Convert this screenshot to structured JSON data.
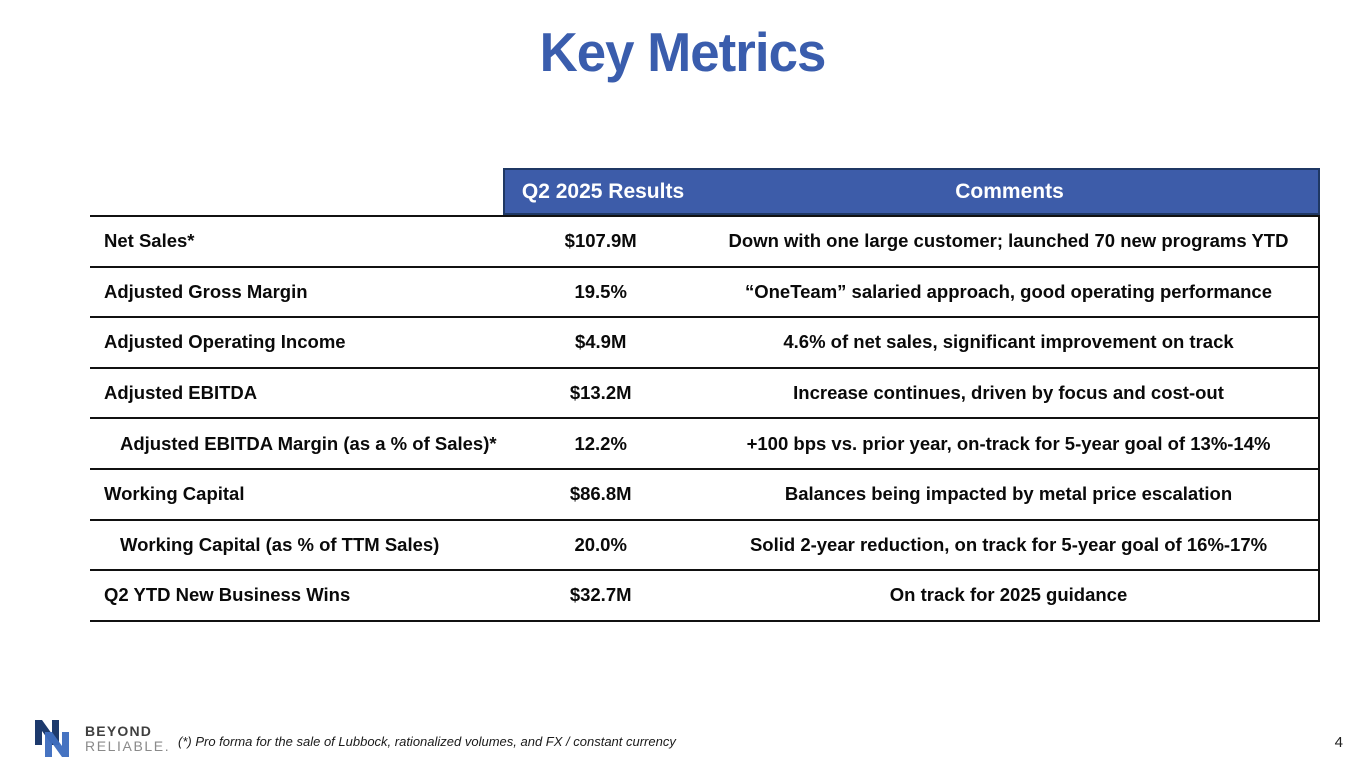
{
  "title": "Key Metrics",
  "table": {
    "columns": {
      "results": "Q2 2025 Results",
      "comments": "Comments"
    },
    "rows": [
      {
        "label": "Net Sales*",
        "value": "$107.9M",
        "comment": "Down with one large customer; launched 70 new programs YTD",
        "indent": false
      },
      {
        "label": "Adjusted Gross Margin",
        "value": "19.5%",
        "comment": "“OneTeam” salaried approach, good operating performance",
        "indent": false
      },
      {
        "label": "Adjusted Operating Income",
        "value": "$4.9M",
        "comment": "4.6% of net sales, significant improvement on track",
        "indent": false
      },
      {
        "label": "Adjusted EBITDA",
        "value": "$13.2M",
        "comment": "Increase continues, driven by focus and cost-out",
        "indent": false
      },
      {
        "label": "Adjusted EBITDA Margin (as a % of Sales)*",
        "value": "12.2%",
        "comment": "+100 bps vs. prior year, on-track for 5-year goal of 13%-14%",
        "indent": true
      },
      {
        "label": "Working Capital",
        "value": "$86.8M",
        "comment": "Balances being impacted by metal price escalation",
        "indent": false
      },
      {
        "label": "Working Capital (as % of TTM Sales)",
        "value": "20.0%",
        "comment": "Solid 2-year reduction, on track for 5-year goal of 16%-17%",
        "indent": true
      },
      {
        "label": "Q2 YTD New Business Wins",
        "value": "$32.7M",
        "comment": "On track for 2025 guidance",
        "indent": false
      }
    ]
  },
  "footer": {
    "logo_line1": "BEYOND",
    "logo_line2": "RELIABLE.",
    "footnote": "(*) Pro forma for the sale of Lubbock, rationalized volumes, and FX / constant currency",
    "page_number": "4"
  },
  "colors": {
    "title": "#3A5DAD",
    "header_bg": "#3D5CA9",
    "header_border": "#1F3864",
    "row_border": "#111111",
    "logo_navy": "#1D3A6D",
    "logo_blue": "#3E6DBE"
  }
}
